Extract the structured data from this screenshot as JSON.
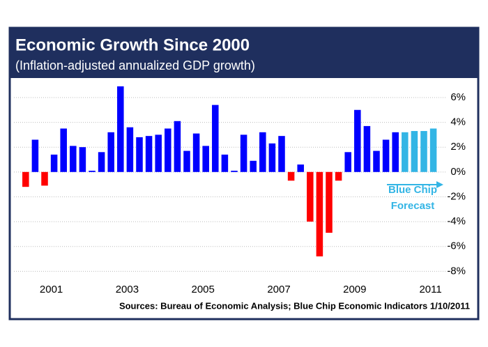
{
  "chart_data": {
    "type": "bar",
    "title": "Economic Growth Since 2000",
    "subtitle": "(Inflation-adjusted annualized GDP growth)",
    "source": "Sources: Bureau of Economic Analysis; Blue Chip Economic Indicators 1/10/2011",
    "annotations": [
      "Blue Chip",
      "Forecast"
    ],
    "categories": [
      null,
      null,
      null,
      "2001",
      null,
      null,
      null,
      null,
      null,
      null,
      null,
      "2003",
      null,
      null,
      null,
      null,
      null,
      null,
      null,
      "2005",
      null,
      null,
      null,
      null,
      null,
      null,
      null,
      "2007",
      null,
      null,
      null,
      null,
      null,
      null,
      null,
      "2009",
      null,
      null,
      null,
      null,
      null,
      null,
      null,
      "2011"
    ],
    "values": [
      -1.2,
      2.6,
      -1.1,
      1.4,
      3.5,
      2.1,
      2.0,
      0.1,
      1.6,
      3.2,
      6.9,
      3.6,
      2.8,
      2.9,
      3.0,
      3.5,
      4.1,
      1.7,
      3.1,
      2.1,
      5.4,
      1.4,
      0.1,
      3.0,
      0.9,
      3.2,
      2.3,
      2.9,
      -0.7,
      0.6,
      -4.0,
      -6.8,
      -4.9,
      -0.7,
      1.6,
      5.0,
      3.7,
      1.7,
      2.6,
      3.2,
      3.2,
      3.3,
      3.3,
      3.5
    ],
    "colors": [
      "#ff0000",
      "#0000ff",
      "#ff0000",
      "#0000ff",
      "#0000ff",
      "#0000ff",
      "#0000ff",
      "#0000ff",
      "#0000ff",
      "#0000ff",
      "#0000ff",
      "#0000ff",
      "#0000ff",
      "#0000ff",
      "#0000ff",
      "#0000ff",
      "#0000ff",
      "#0000ff",
      "#0000ff",
      "#0000ff",
      "#0000ff",
      "#0000ff",
      "#0000ff",
      "#0000ff",
      "#0000ff",
      "#0000ff",
      "#0000ff",
      "#0000ff",
      "#ff0000",
      "#0000ff",
      "#ff0000",
      "#ff0000",
      "#ff0000",
      "#ff0000",
      "#0000ff",
      "#0000ff",
      "#0000ff",
      "#0000ff",
      "#0000ff",
      "#0000ff",
      "#33b5e5",
      "#33b5e5",
      "#33b5e5",
      "#33b5e5"
    ],
    "ylim": [
      -8.6,
      7.4
    ],
    "yticks": [
      {
        "value": 6,
        "label": "6%"
      },
      {
        "value": 4,
        "label": "4%"
      },
      {
        "value": 2,
        "label": "2%"
      },
      {
        "value": 0,
        "label": "0%"
      },
      {
        "value": -2,
        "label": "-2%"
      },
      {
        "value": -4,
        "label": "-4%"
      },
      {
        "value": -6,
        "label": "-6%"
      },
      {
        "value": -8,
        "label": "-8%"
      }
    ],
    "grid": true,
    "annotation_color": "#33b5e5"
  }
}
